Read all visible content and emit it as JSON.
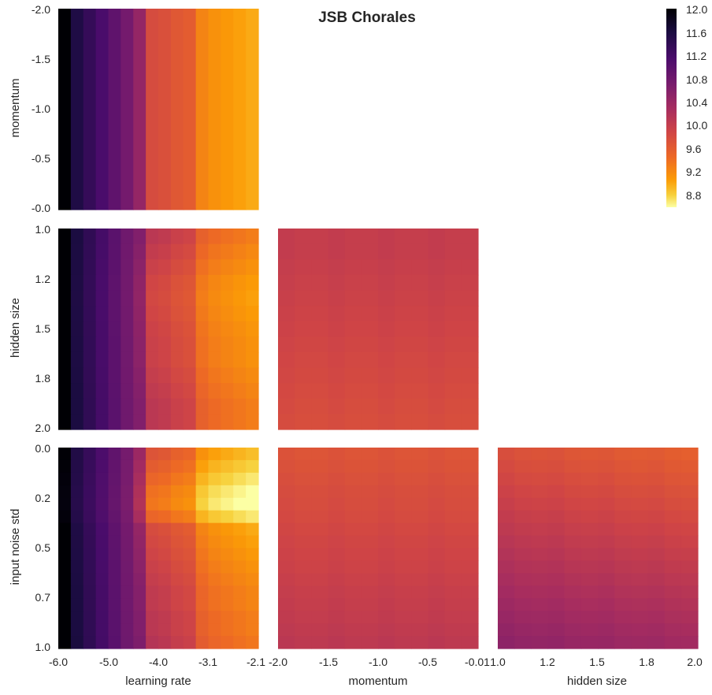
{
  "chart_data": {
    "type": "heatmap",
    "title": "JSB Chorales",
    "colormap": "inferno_r",
    "colorbar": {
      "vmin": 8.6,
      "vmax": 12.0,
      "ticks": [
        "12.0",
        "11.6",
        "11.2",
        "10.8",
        "10.4",
        "10.0",
        "9.6",
        "9.2",
        "8.8"
      ]
    },
    "axes": {
      "learning_rate": {
        "label": "learning rate",
        "range": [
          -6.0,
          -2.1
        ],
        "ticks": [
          "-6.0",
          "-5.0",
          "-4.0",
          "-3.1",
          "-2.1"
        ]
      },
      "momentum": {
        "label": "momentum",
        "range": [
          -2.0,
          -0.01
        ],
        "ticks": [
          "-2.0",
          "-1.5",
          "-1.0",
          "-0.5",
          "-0.01"
        ],
        "row_ticks": [
          "-2.0",
          "-1.5",
          "-1.0",
          "-0.5",
          "-0.0"
        ]
      },
      "hidden_size": {
        "label": "hidden size",
        "range": [
          1.0,
          2.0
        ],
        "ticks": [
          "1.0",
          "1.2",
          "1.5",
          "1.8",
          "2.0"
        ]
      },
      "input_noise_std": {
        "label": "input noise std",
        "range": [
          0.0,
          1.0
        ],
        "ticks": [
          "0.0",
          "0.2",
          "0.5",
          "0.7",
          "1.0"
        ]
      }
    },
    "learning_rate_profile": [
      12.0,
      11.55,
      11.35,
      11.15,
      10.95,
      10.75,
      10.45,
      9.8,
      9.75,
      9.65,
      9.6,
      9.25,
      9.15,
      9.1,
      9.05,
      9.0
    ],
    "panels": [
      {
        "row": "momentum",
        "col": "learning_rate",
        "note": "value varies only along learning rate"
      },
      {
        "row": "hidden_size",
        "col": "learning_rate",
        "cell_offsets": [
          0.3,
          0.22,
          0.15,
          0.08,
          0.05,
          0.08,
          0.12,
          0.15,
          0.15,
          0.2,
          0.25,
          0.3,
          0.3
        ]
      },
      {
        "row": "hidden_size",
        "col": "momentum",
        "values": [
          10.0,
          10.0,
          9.98,
          9.96,
          9.94,
          9.92,
          9.9,
          9.88,
          9.86,
          9.84,
          9.82,
          9.8,
          9.78
        ]
      },
      {
        "row": "input_noise_std",
        "col": "learning_rate",
        "cell_offsets": [
          -0.1,
          -0.2,
          -0.3,
          -0.4,
          -0.45,
          -0.3,
          0.0,
          0.05,
          0.1,
          0.15,
          0.2,
          0.25,
          0.25,
          0.3,
          0.3,
          0.35
        ]
      },
      {
        "row": "input_noise_std",
        "col": "momentum",
        "values": [
          9.7,
          9.72,
          9.75,
          9.78,
          9.8,
          9.82,
          9.85,
          9.88,
          9.9,
          9.92,
          9.95,
          9.98,
          10.0,
          10.02,
          10.05,
          10.08
        ]
      },
      {
        "row": "input_noise_std",
        "col": "hidden_size",
        "values": [
          9.75,
          9.8,
          9.85,
          9.9,
          9.95,
          10.0,
          10.05,
          10.1,
          10.15,
          10.2,
          10.25,
          10.3,
          10.35,
          10.4,
          10.45,
          10.5
        ]
      }
    ]
  }
}
